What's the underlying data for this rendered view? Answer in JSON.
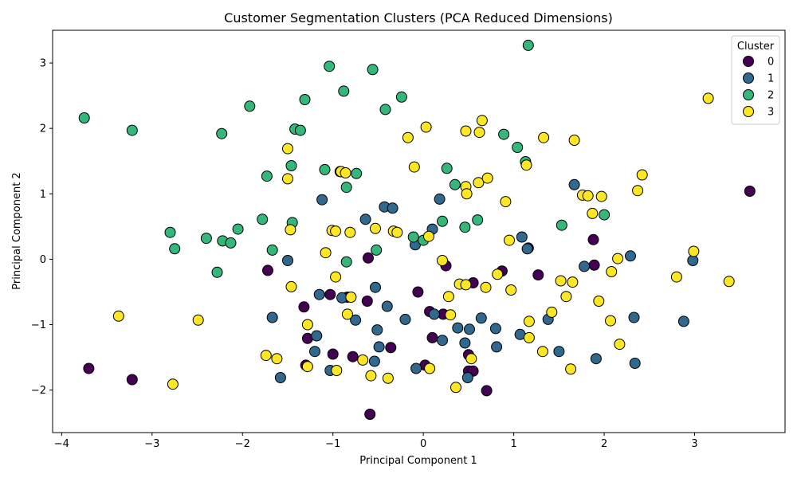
{
  "chart_data": {
    "type": "scatter",
    "title": "Customer Segmentation Clusters (PCA Reduced Dimensions)",
    "xlabel": "Principal Component 1",
    "ylabel": "Principal Component 2",
    "xlim": [
      -4.1,
      4.0
    ],
    "ylim": [
      -2.65,
      3.5
    ],
    "xticks": [
      -4,
      -3,
      -2,
      -1,
      0,
      1,
      2,
      3
    ],
    "yticks": [
      -2,
      -1,
      0,
      1,
      2,
      3
    ],
    "grid": false,
    "legend": {
      "title": "Cluster",
      "placement": "top-right"
    },
    "series": [
      {
        "name": "0",
        "color": "#440154",
        "points": [
          [
            -3.7,
            -1.67
          ],
          [
            -3.22,
            -1.84
          ],
          [
            -1.72,
            -0.17
          ],
          [
            -1.32,
            -0.73
          ],
          [
            -1.28,
            -1.21
          ],
          [
            -1.3,
            -1.62
          ],
          [
            -1.03,
            -0.54
          ],
          [
            -1.0,
            -1.45
          ],
          [
            -0.84,
            -0.58
          ],
          [
            -0.78,
            -1.49
          ],
          [
            -0.62,
            -0.64
          ],
          [
            -0.61,
            0.02
          ],
          [
            -0.59,
            -2.37
          ],
          [
            -0.36,
            -1.35
          ],
          [
            -0.06,
            -0.5
          ],
          [
            0.02,
            -1.62
          ],
          [
            0.07,
            -0.8
          ],
          [
            0.1,
            -1.2
          ],
          [
            0.22,
            -0.84
          ],
          [
            0.25,
            -0.1
          ],
          [
            0.5,
            -1.46
          ],
          [
            0.5,
            -1.71
          ],
          [
            0.55,
            -1.71
          ],
          [
            0.55,
            -0.36
          ],
          [
            0.7,
            -2.01
          ],
          [
            0.87,
            -0.18
          ],
          [
            1.16,
            0.17
          ],
          [
            1.27,
            -0.24
          ],
          [
            1.88,
            0.3
          ],
          [
            1.89,
            -0.09
          ],
          [
            3.61,
            1.04
          ]
        ]
      },
      {
        "name": "1",
        "color": "#31688e",
        "points": [
          [
            -1.67,
            -0.89
          ],
          [
            -1.58,
            -1.81
          ],
          [
            -1.5,
            -0.02
          ],
          [
            -1.2,
            -1.41
          ],
          [
            -1.18,
            -1.17
          ],
          [
            -1.15,
            -0.54
          ],
          [
            -1.12,
            0.91
          ],
          [
            -1.03,
            -1.7
          ],
          [
            -0.9,
            -0.59
          ],
          [
            -0.75,
            -0.93
          ],
          [
            -0.64,
            0.61
          ],
          [
            -0.54,
            -1.56
          ],
          [
            -0.53,
            -0.43
          ],
          [
            -0.51,
            -1.08
          ],
          [
            -0.49,
            -1.34
          ],
          [
            -0.43,
            0.8
          ],
          [
            -0.4,
            -0.72
          ],
          [
            -0.34,
            0.78
          ],
          [
            -0.2,
            -0.92
          ],
          [
            -0.09,
            0.22
          ],
          [
            -0.08,
            -1.67
          ],
          [
            0.1,
            0.46
          ],
          [
            0.12,
            -0.84
          ],
          [
            0.18,
            0.92
          ],
          [
            0.21,
            -1.24
          ],
          [
            0.38,
            -1.05
          ],
          [
            0.46,
            -1.28
          ],
          [
            0.49,
            -1.81
          ],
          [
            0.51,
            -1.07
          ],
          [
            0.64,
            -0.9
          ],
          [
            0.8,
            -1.06
          ],
          [
            0.81,
            -1.34
          ],
          [
            1.07,
            -1.15
          ],
          [
            1.09,
            0.34
          ],
          [
            1.15,
            0.16
          ],
          [
            1.38,
            -0.92
          ],
          [
            1.5,
            -1.41
          ],
          [
            1.67,
            1.14
          ],
          [
            1.78,
            -0.11
          ],
          [
            1.91,
            -1.52
          ],
          [
            2.29,
            0.05
          ],
          [
            2.33,
            -0.89
          ],
          [
            2.34,
            -1.59
          ],
          [
            2.88,
            -0.95
          ],
          [
            2.98,
            -0.02
          ]
        ]
      },
      {
        "name": "2",
        "color": "#35b779",
        "points": [
          [
            -3.75,
            2.16
          ],
          [
            -3.22,
            1.97
          ],
          [
            -2.8,
            0.41
          ],
          [
            -2.75,
            0.16
          ],
          [
            -2.4,
            0.32
          ],
          [
            -2.28,
            -0.2
          ],
          [
            -2.23,
            1.92
          ],
          [
            -2.22,
            0.28
          ],
          [
            -2.13,
            0.25
          ],
          [
            -2.05,
            0.46
          ],
          [
            -1.92,
            2.34
          ],
          [
            -1.78,
            0.61
          ],
          [
            -1.73,
            1.27
          ],
          [
            -1.67,
            0.14
          ],
          [
            -1.46,
            1.43
          ],
          [
            -1.45,
            0.56
          ],
          [
            -1.42,
            1.99
          ],
          [
            -1.36,
            1.97
          ],
          [
            -1.31,
            2.44
          ],
          [
            -1.09,
            1.37
          ],
          [
            -1.04,
            2.95
          ],
          [
            -0.92,
            1.34
          ],
          [
            -0.88,
            2.57
          ],
          [
            -0.85,
            1.1
          ],
          [
            -0.85,
            -0.04
          ],
          [
            -0.74,
            1.31
          ],
          [
            -0.56,
            2.9
          ],
          [
            -0.52,
            0.14
          ],
          [
            -0.42,
            2.29
          ],
          [
            -0.24,
            2.48
          ],
          [
            -0.11,
            0.34
          ],
          [
            0.0,
            0.29
          ],
          [
            0.21,
            0.58
          ],
          [
            0.26,
            1.39
          ],
          [
            0.35,
            1.14
          ],
          [
            0.46,
            0.49
          ],
          [
            0.6,
            0.6
          ],
          [
            0.89,
            1.91
          ],
          [
            1.04,
            1.71
          ],
          [
            1.13,
            1.49
          ],
          [
            1.16,
            3.27
          ],
          [
            1.53,
            0.52
          ],
          [
            2.0,
            0.68
          ]
        ]
      },
      {
        "name": "3",
        "color": "#fde725",
        "points": [
          [
            -3.37,
            -0.87
          ],
          [
            -2.77,
            -1.91
          ],
          [
            -2.49,
            -0.93
          ],
          [
            -1.74,
            -1.47
          ],
          [
            -1.62,
            -1.52
          ],
          [
            -1.5,
            1.69
          ],
          [
            -1.5,
            1.23
          ],
          [
            -1.47,
            0.45
          ],
          [
            -1.46,
            -0.42
          ],
          [
            -1.28,
            -1.0
          ],
          [
            -1.28,
            -1.64
          ],
          [
            -1.08,
            0.1
          ],
          [
            -1.01,
            0.44
          ],
          [
            -0.97,
            0.43
          ],
          [
            -0.97,
            -0.27
          ],
          [
            -0.96,
            -1.7
          ],
          [
            -0.91,
            1.34
          ],
          [
            -0.86,
            1.32
          ],
          [
            -0.84,
            -0.84
          ],
          [
            -0.81,
            0.41
          ],
          [
            -0.8,
            -0.58
          ],
          [
            -0.67,
            -1.54
          ],
          [
            -0.58,
            -1.78
          ],
          [
            -0.53,
            0.47
          ],
          [
            -0.39,
            -1.82
          ],
          [
            -0.33,
            0.43
          ],
          [
            -0.29,
            0.41
          ],
          [
            -0.17,
            1.86
          ],
          [
            -0.1,
            1.41
          ],
          [
            0.03,
            2.02
          ],
          [
            0.06,
            0.35
          ],
          [
            0.07,
            -1.67
          ],
          [
            0.21,
            -0.02
          ],
          [
            0.28,
            -0.57
          ],
          [
            0.3,
            -0.85
          ],
          [
            0.36,
            -1.96
          ],
          [
            0.4,
            -0.38
          ],
          [
            0.47,
            1.11
          ],
          [
            0.47,
            1.96
          ],
          [
            0.47,
            -0.39
          ],
          [
            0.48,
            1.0
          ],
          [
            0.53,
            -1.52
          ],
          [
            0.61,
            1.17
          ],
          [
            0.62,
            1.94
          ],
          [
            0.65,
            2.12
          ],
          [
            0.69,
            -0.43
          ],
          [
            0.71,
            1.24
          ],
          [
            0.82,
            -0.23
          ],
          [
            0.91,
            0.88
          ],
          [
            0.95,
            0.29
          ],
          [
            0.97,
            -0.47
          ],
          [
            1.14,
            1.44
          ],
          [
            1.17,
            -0.95
          ],
          [
            1.17,
            -1.2
          ],
          [
            1.32,
            -1.41
          ],
          [
            1.33,
            1.86
          ],
          [
            1.42,
            -0.81
          ],
          [
            1.52,
            -0.33
          ],
          [
            1.58,
            -0.57
          ],
          [
            1.63,
            -1.68
          ],
          [
            1.65,
            -0.35
          ],
          [
            1.67,
            1.82
          ],
          [
            1.76,
            0.98
          ],
          [
            1.82,
            0.97
          ],
          [
            1.87,
            0.7
          ],
          [
            1.94,
            -0.64
          ],
          [
            1.97,
            0.96
          ],
          [
            2.07,
            -0.94
          ],
          [
            2.08,
            -0.19
          ],
          [
            2.15,
            0.01
          ],
          [
            2.17,
            -1.3
          ],
          [
            2.37,
            1.05
          ],
          [
            2.42,
            1.29
          ],
          [
            2.8,
            -0.27
          ],
          [
            2.99,
            0.12
          ],
          [
            3.15,
            2.46
          ],
          [
            3.38,
            -0.34
          ]
        ]
      }
    ]
  }
}
